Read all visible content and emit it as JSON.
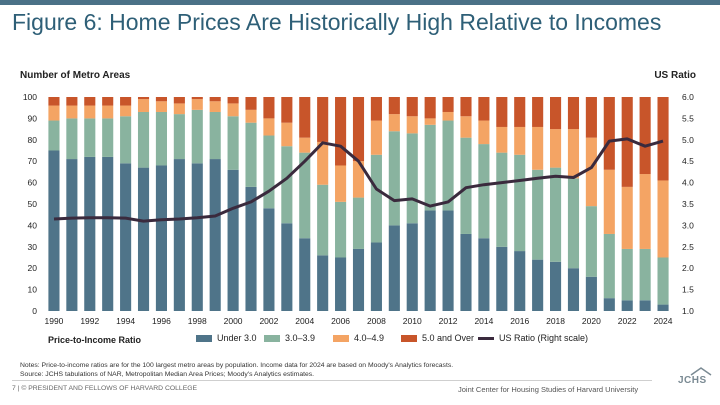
{
  "header": {
    "title": "Figure 6: Home Prices Are Historically High Relative to Incomes"
  },
  "chart_data": {
    "type": "bar",
    "stacked": true,
    "ylabel_left": "Number of Metro Areas",
    "ylabel_right": "US Ratio",
    "ylim_left": [
      0,
      100
    ],
    "ylim_right": [
      1.0,
      6.0
    ],
    "yticks_left": [
      "0",
      "10",
      "20",
      "30",
      "40",
      "50",
      "60",
      "70",
      "80",
      "90",
      "100"
    ],
    "yticks_right": [
      "1.0",
      "1.5",
      "2.0",
      "2.5",
      "3.0",
      "3.5",
      "4.0",
      "4.5",
      "5.0",
      "5.5",
      "6.0"
    ],
    "xtick_labels": [
      "1990",
      "1992",
      "1994",
      "1996",
      "1998",
      "2000",
      "2002",
      "2004",
      "2006",
      "2008",
      "2010",
      "2012",
      "2014",
      "2016",
      "2018",
      "2020",
      "2022",
      "2024"
    ],
    "years": [
      "1990",
      "1991",
      "1992",
      "1993",
      "1994",
      "1995",
      "1996",
      "1997",
      "1998",
      "1999",
      "2000",
      "2001",
      "2002",
      "2003",
      "2004",
      "2005",
      "2006",
      "2007",
      "2008",
      "2009",
      "2010",
      "2011",
      "2012",
      "2013",
      "2014",
      "2015",
      "2016",
      "2017",
      "2018",
      "2019",
      "2020",
      "2021",
      "2022",
      "2023",
      "2024"
    ],
    "legend_title": "Price-to-Income Ratio",
    "series": [
      {
        "name": "Under 3.0",
        "color": "#4f7489",
        "values": [
          75,
          71,
          72,
          72,
          69,
          67,
          68,
          71,
          69,
          71,
          66,
          58,
          48,
          41,
          34,
          26,
          25,
          29,
          32,
          40,
          41,
          47,
          47,
          36,
          34,
          30,
          28,
          24,
          23,
          20,
          16,
          6,
          5,
          5,
          3
        ]
      },
      {
        "name": "3.0–3.9",
        "color": "#89b39f",
        "values": [
          14,
          19,
          18,
          18,
          22,
          26,
          25,
          21,
          25,
          22,
          25,
          30,
          34,
          36,
          40,
          33,
          26,
          24,
          41,
          44,
          42,
          40,
          42,
          45,
          44,
          44,
          45,
          42,
          44,
          42,
          33,
          30,
          24,
          24,
          22
        ]
      },
      {
        "name": "4.0–4.9",
        "color": "#f4a464",
        "values": [
          7,
          6,
          6,
          6,
          5,
          6,
          5,
          5,
          5,
          5,
          6,
          6,
          8,
          11,
          7,
          20,
          17,
          17,
          16,
          8,
          8,
          3,
          4,
          10,
          11,
          12,
          13,
          20,
          18,
          23,
          32,
          30,
          29,
          35,
          36
        ]
      },
      {
        "name": "5.0 and Over",
        "color": "#c8552a",
        "values": [
          4,
          4,
          4,
          4,
          4,
          1,
          2,
          3,
          1,
          2,
          3,
          6,
          10,
          12,
          19,
          21,
          32,
          30,
          11,
          8,
          9,
          10,
          7,
          9,
          11,
          14,
          14,
          14,
          15,
          15,
          19,
          34,
          42,
          36,
          39
        ]
      }
    ],
    "line_series": {
      "name": "US Ratio (Right scale)",
      "color": "#3a2a3d",
      "values": [
        3.15,
        3.17,
        3.18,
        3.18,
        3.17,
        3.1,
        3.13,
        3.15,
        3.18,
        3.22,
        3.4,
        3.55,
        3.8,
        4.1,
        4.5,
        4.93,
        4.85,
        4.5,
        3.85,
        3.58,
        3.62,
        3.45,
        3.55,
        3.88,
        3.95,
        4.0,
        4.05,
        4.1,
        4.15,
        4.12,
        4.35,
        4.97,
        5.02,
        4.85,
        4.97
      ]
    }
  },
  "notes": {
    "line1": "Notes: Price-to-income ratios are for the 100 largest metro areas by population. Income data for 2024 are based on Moody's Analytics forecasts.",
    "line2": "Source: JCHS tabulations of NAR, Metropolitan Median Area Prices; Moody's Analytics estimates."
  },
  "footer": {
    "left": "7 | © PRESIDENT AND FELLOWS OF HARVARD COLLEGE",
    "right": "Joint Center for Housing Studies of Harvard University",
    "logo_text": "JCHS"
  }
}
